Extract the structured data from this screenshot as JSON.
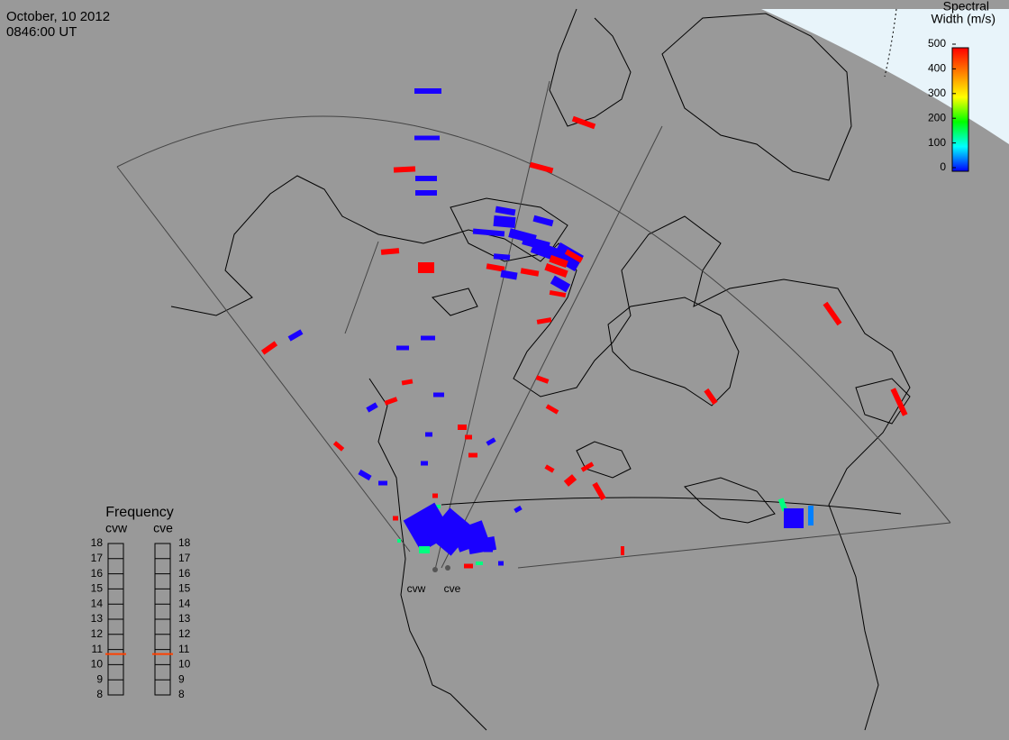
{
  "header": {
    "date": "October, 10 2012",
    "time": "0846:00 UT"
  },
  "colorbar": {
    "title_lines": [
      "Spectral",
      "Width (m/s)"
    ],
    "lim": [
      0,
      500
    ],
    "ticks": [
      0,
      100,
      200,
      300,
      400,
      500
    ]
  },
  "frequency": {
    "title": "Frequency",
    "lim": [
      8,
      18
    ],
    "ticks": [
      8,
      9,
      10,
      11,
      12,
      13,
      14,
      15,
      16,
      17,
      18
    ],
    "radars": [
      {
        "name": "cvw",
        "value": 10.7
      },
      {
        "name": "cve",
        "value": 10.7
      }
    ]
  },
  "map": {
    "radar_labels": [
      "cvw",
      "cve"
    ]
  }
}
